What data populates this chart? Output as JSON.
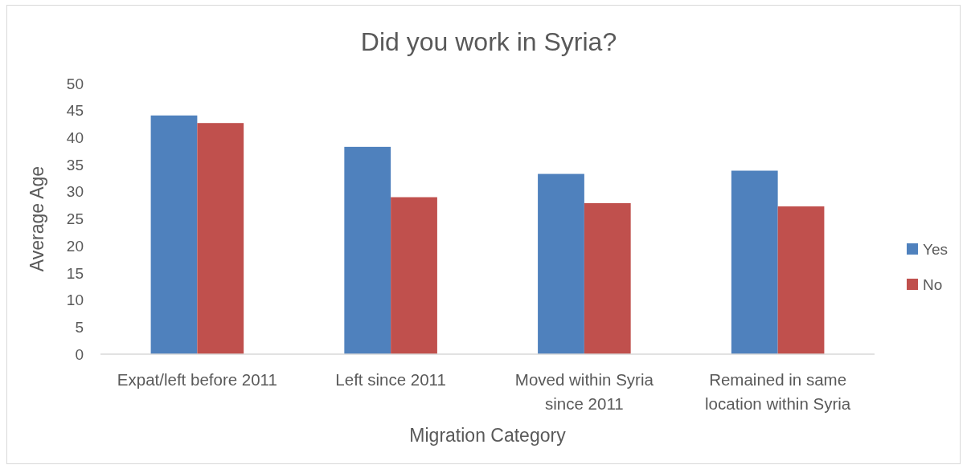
{
  "chart_data": {
    "type": "bar",
    "title": "Did you work in Syria?",
    "xlabel": "Migration Category",
    "ylabel": "Average Age",
    "categories": [
      "Expat/left before 2011",
      "Left since 2011",
      "Moved within Syria since 2011",
      "Remained in same location within Syria"
    ],
    "series": [
      {
        "name": "Yes",
        "color": "#4f81bd",
        "values": [
          44.1,
          38.3,
          33.3,
          33.9
        ]
      },
      {
        "name": "No",
        "color": "#c0504d",
        "values": [
          42.7,
          29.0,
          27.9,
          27.3
        ]
      }
    ],
    "ylim": [
      0,
      50
    ],
    "yticks": [
      0,
      5,
      10,
      15,
      20,
      25,
      30,
      35,
      40,
      45,
      50
    ],
    "legend": "right"
  }
}
